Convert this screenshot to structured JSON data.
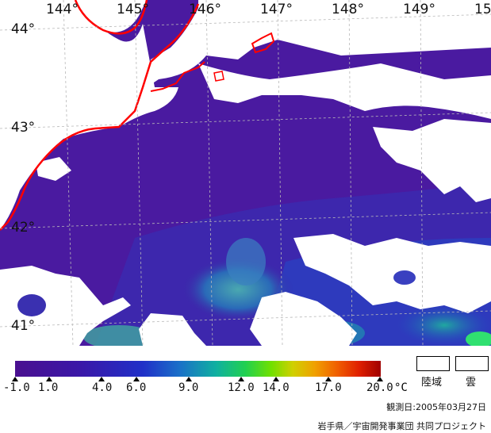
{
  "map": {
    "longitude_labels": [
      "144°",
      "145°",
      "146°",
      "147°",
      "148°",
      "149°",
      "15"
    ],
    "latitude_labels": [
      "44°",
      "43°",
      "42°",
      "41°"
    ],
    "colors": {
      "sea_base": "#4a1aa0",
      "cloud": "#ffffff",
      "coastline": "#ff0000",
      "grid": "#b8b8b8"
    }
  },
  "colorbar": {
    "tick_labels": [
      "-1.0",
      "1.0",
      "4.0",
      "6.0",
      "9.0",
      "12.0",
      "14.0",
      "17.0",
      "20.0"
    ],
    "unit": "°C"
  },
  "legend": {
    "land_label": "陸域",
    "cloud_label": "雲"
  },
  "footer": {
    "observation_date": "観測日:2005年03月27日",
    "credit": "岩手県／宇宙開発事業団 共同プロジェクト"
  }
}
